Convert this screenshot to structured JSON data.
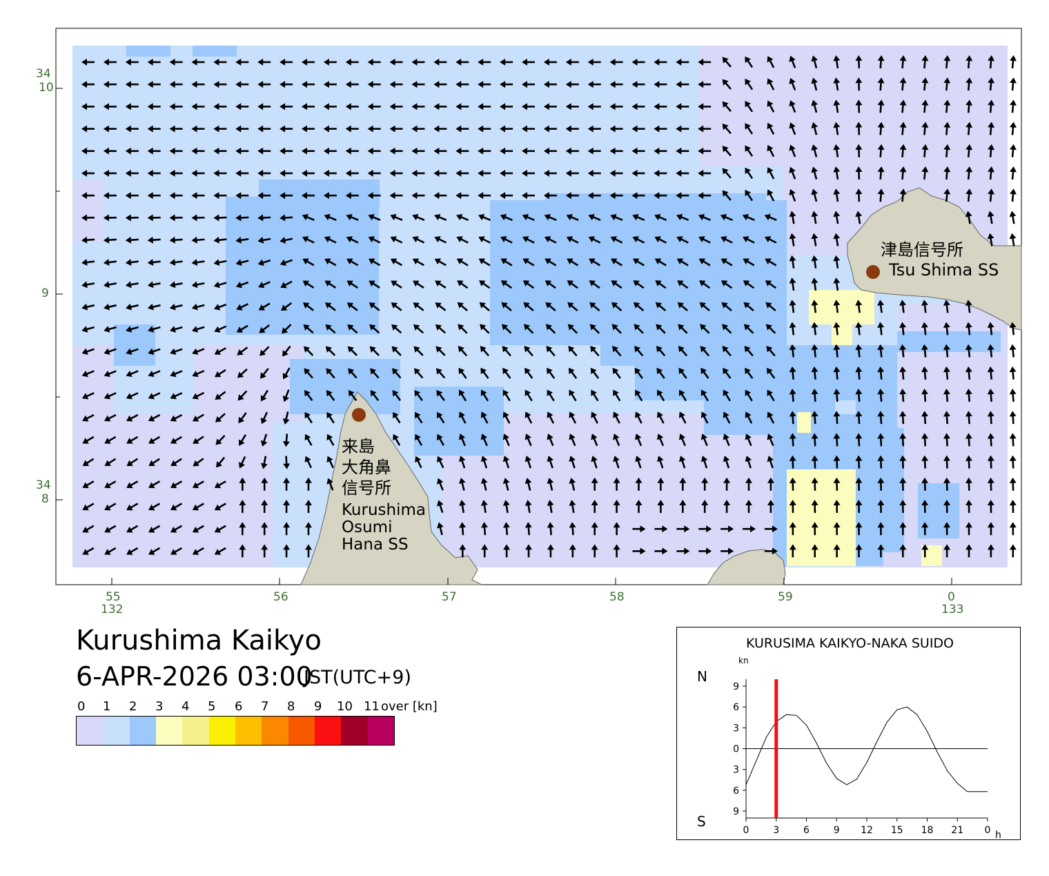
{
  "map": {
    "title": "Kurushima Kaikyo",
    "datetime": "6-APR-2026 03:00",
    "timezone": "JST(UTC+9)",
    "axes": {
      "lat_labels": [
        {
          "deg": "34",
          "min": "10"
        },
        {
          "deg": "",
          "min": "9"
        },
        {
          "deg": "34",
          "min": "8"
        }
      ],
      "lon_labels": [
        {
          "min": "55",
          "deg": "132"
        },
        {
          "min": "56",
          "deg": ""
        },
        {
          "min": "57",
          "deg": ""
        },
        {
          "min": "58",
          "deg": ""
        },
        {
          "min": "59",
          "deg": ""
        },
        {
          "min": "0",
          "deg": "133"
        }
      ]
    },
    "stations": [
      {
        "name_ja": "津島信号所",
        "name_en": "Tsu Shima SS"
      },
      {
        "name_ja_lines": [
          "来島",
          "大角鼻",
          "信号所"
        ],
        "name_en_lines": [
          "Kurushima",
          "Osumi",
          "Hana SS"
        ]
      }
    ],
    "colors": {
      "land": "#d6d4c2",
      "speed_0_1": "#d8d8f8",
      "speed_1_2": "#c8e0fc",
      "speed_2_3": "#9cc8fc",
      "speed_3_4": "#fcfcbe",
      "arrow": "#000000",
      "station_marker": "#8b3a10"
    }
  },
  "legend": {
    "ticks": [
      "0",
      "1",
      "2",
      "3",
      "4",
      "5",
      "6",
      "7",
      "8",
      "9",
      "10",
      "11"
    ],
    "over_label": "over [kn]",
    "colors": [
      "#d8d8f8",
      "#c8e0fc",
      "#9cc8fc",
      "#fcfcbe",
      "#f4f08c",
      "#f8f000",
      "#fcc000",
      "#fc8800",
      "#f85800",
      "#fa1010",
      "#a00028",
      "#b8005c"
    ]
  },
  "tide_graph": {
    "title": "KURUSIMA KAIKYO-NAKA SUIDO",
    "unit": "kn",
    "north_label": "N",
    "south_label": "S",
    "hour_unit": "h",
    "chart_data": {
      "type": "line",
      "xlabel": "",
      "ylabel": "kn",
      "x_ticks": [
        "0",
        "3",
        "6",
        "9",
        "12",
        "15",
        "18",
        "21",
        "0"
      ],
      "y_ticks": [
        "9",
        "6",
        "3",
        "0",
        "3",
        "6",
        "9"
      ],
      "xlim": [
        0,
        24
      ],
      "ylim": [
        -10,
        10
      ],
      "current_time_h": 3,
      "current_time_color": "#ee1111",
      "series": [
        {
          "x": [
            0,
            1,
            2,
            3,
            4,
            5,
            6,
            7,
            8,
            9,
            10,
            11,
            12,
            13,
            14,
            15,
            16,
            17,
            18,
            19,
            20,
            21,
            22,
            23,
            24
          ],
          "values": [
            -5.2,
            -1.8,
            1.6,
            3.9,
            4.9,
            4.8,
            3.4,
            0.8,
            -2.1,
            -4.3,
            -5.2,
            -4.4,
            -2.0,
            1.0,
            3.8,
            5.6,
            6.0,
            4.9,
            2.5,
            -0.5,
            -3.2,
            -5.0,
            -6.2,
            -6.2,
            -6.2
          ]
        }
      ]
    }
  }
}
